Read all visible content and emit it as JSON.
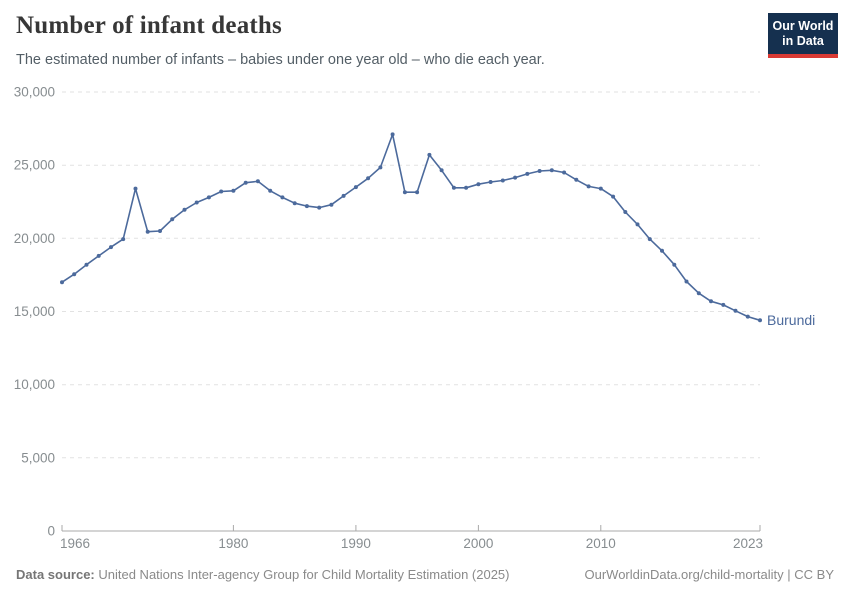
{
  "header": {
    "logo": {
      "line1": "Our World",
      "line2": "in Data"
    }
  },
  "footer": {
    "source_label": "Data source:",
    "source_text": " United Nations Inter-agency Group for Child Mortality Estimation (2025)",
    "link_text": "OurWorldinData.org/child-mortality",
    "separator": " | ",
    "license": "CC BY"
  },
  "colors": {
    "line": "#4c6a9c",
    "logo_bg": "#15304f",
    "logo_accent": "#d93a34",
    "grid": "#e2e2e2",
    "axis": "#a9a9a9",
    "tick_text": "#878d90"
  },
  "chart_data": {
    "type": "line",
    "title": "Number of infant deaths",
    "subtitle": "The estimated number of infants – babies under one year old – who die each year.",
    "xlim": [
      1966,
      2023
    ],
    "ylim": [
      0,
      30000
    ],
    "grid": "horizontal dashed",
    "legend_position": "end-of-line label",
    "line_color": "#4c6a9c",
    "x_ticks": [
      {
        "value": 1966,
        "label": "1966"
      },
      {
        "value": 1980,
        "label": "1980"
      },
      {
        "value": 1990,
        "label": "1990"
      },
      {
        "value": 2000,
        "label": "2000"
      },
      {
        "value": 2010,
        "label": "2010"
      },
      {
        "value": 2023,
        "label": "2023"
      }
    ],
    "y_ticks": [
      {
        "value": 0,
        "label": "0"
      },
      {
        "value": 5000,
        "label": "5,000"
      },
      {
        "value": 10000,
        "label": "10,000"
      },
      {
        "value": 15000,
        "label": "15,000"
      },
      {
        "value": 20000,
        "label": "20,000"
      },
      {
        "value": 25000,
        "label": "25,000"
      },
      {
        "value": 30000,
        "label": "30,000"
      }
    ],
    "series": [
      {
        "name": "Burundi",
        "years": [
          1966,
          1967,
          1968,
          1969,
          1970,
          1971,
          1972,
          1973,
          1974,
          1975,
          1976,
          1977,
          1978,
          1979,
          1980,
          1981,
          1982,
          1983,
          1984,
          1985,
          1986,
          1987,
          1988,
          1989,
          1990,
          1991,
          1992,
          1993,
          1994,
          1995,
          1996,
          1997,
          1998,
          1999,
          2000,
          2001,
          2002,
          2003,
          2004,
          2005,
          2006,
          2007,
          2008,
          2009,
          2010,
          2011,
          2012,
          2013,
          2014,
          2015,
          2016,
          2017,
          2018,
          2019,
          2020,
          2021,
          2022,
          2023
        ],
        "values": [
          17000,
          17550,
          18200,
          18800,
          19400,
          19950,
          23400,
          20450,
          20500,
          21300,
          21950,
          22450,
          22800,
          23200,
          23250,
          23800,
          23900,
          23250,
          22800,
          22400,
          22200,
          22100,
          22300,
          22900,
          23500,
          24100,
          24850,
          27100,
          23150,
          23150,
          25700,
          24650,
          23450,
          23450,
          23700,
          23850,
          23950,
          24150,
          24400,
          24600,
          24650,
          24500,
          24000,
          23550,
          23400,
          22850,
          21800,
          20950,
          19950,
          19150,
          18200,
          17050,
          16250,
          15700,
          15450,
          15050,
          14650,
          14400
        ]
      }
    ]
  }
}
